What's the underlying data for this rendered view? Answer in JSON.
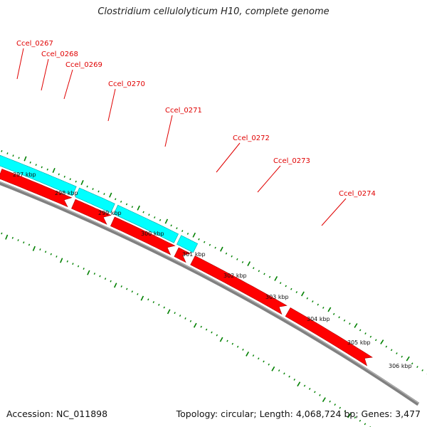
{
  "title": "Clostridium cellulolyticum H10, complete genome",
  "footer": {
    "accession": "Accession: NC_011898",
    "summary": "Topology: circular; Length: 4,068,724 bp; Genes: 3,477"
  },
  "colors": {
    "cds": "#ff0000",
    "cds_edge": "#b00000",
    "gene": "#00ffff",
    "gene_edge": "#00aaaa",
    "backbone": "#808080",
    "ticks": "#008000",
    "label": "#e00000"
  },
  "gene_labels": [
    "Ccel_0267",
    "Ccel_0268",
    "Ccel_0269",
    "Ccel_0270",
    "Ccel_0271",
    "Ccel_0272",
    "Ccel_0273",
    "Ccel_0274"
  ],
  "scale_labels": [
    "297 kbp",
    "298 kbp",
    "299 kbp",
    "300 kbp",
    "301 kbp",
    "302 kbp",
    "303 kbp",
    "304 kbp",
    "305 kbp",
    "306 kbp"
  ]
}
